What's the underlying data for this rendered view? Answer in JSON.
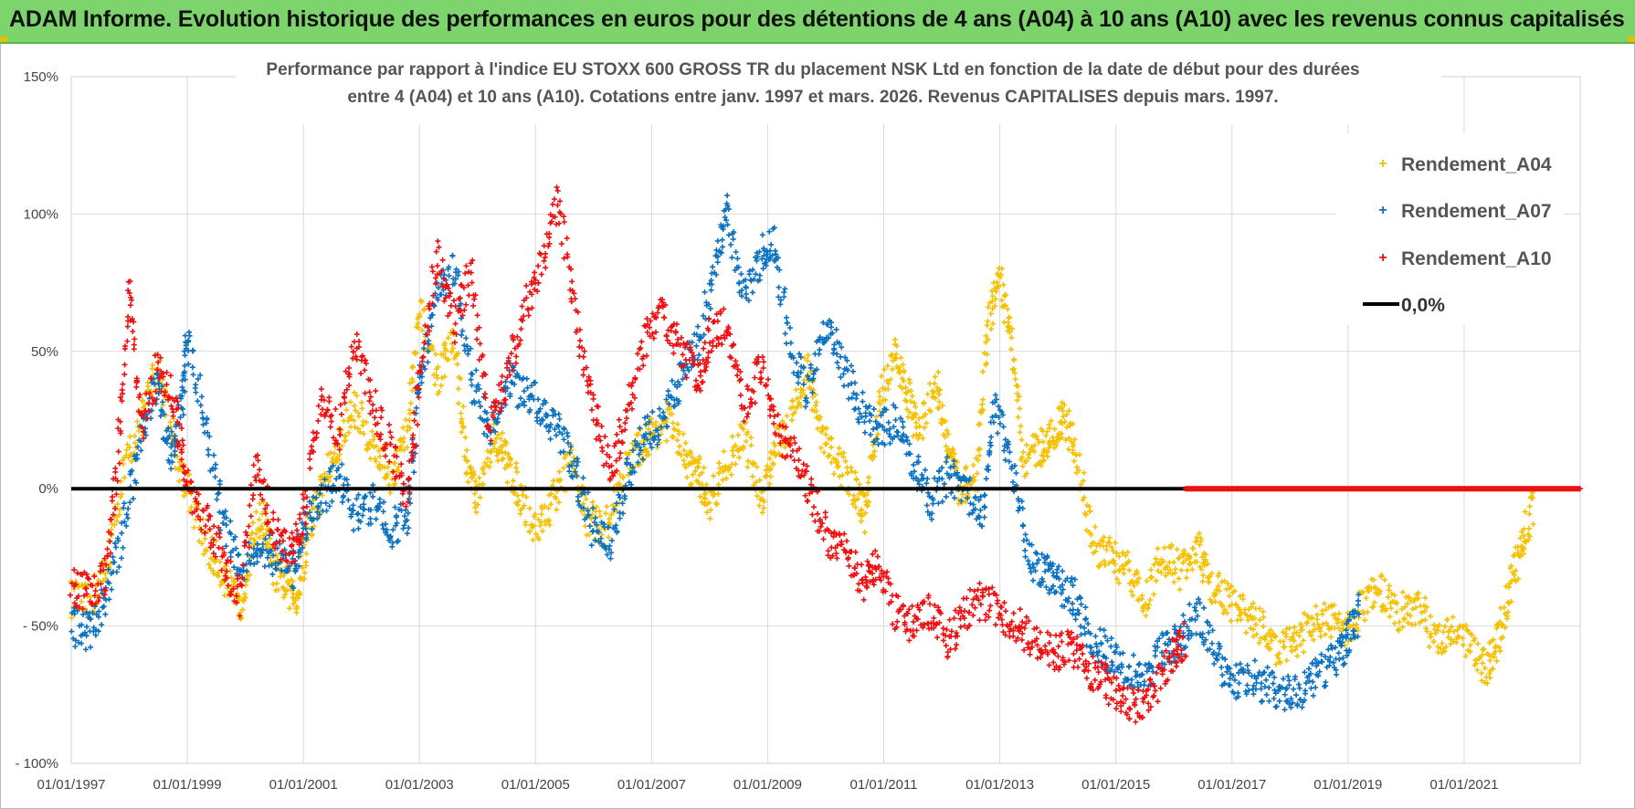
{
  "header": {
    "title": "ADAM Informe. Evolution historique des performances en euros pour des détentions de 4 ans (A04) à 10 ans (A10) avec les revenus connus capitalisés"
  },
  "colors": {
    "A04": "#f5c000",
    "A07": "#0a70c0",
    "A10": "#ee1010",
    "zero": "#000000",
    "banner": "#7dd46d",
    "grid": "#d9d9d9"
  },
  "chart_data": {
    "type": "scatter",
    "title_lines": [
      "Performance par rapport à l'indice EU STOXX 600 GROSS TR  du placement NSK Ltd en fonction de la date de début pour des durées",
      "entre 4 (A04) et 10 ans (A10).  Cotations entre janv. 1997 et mars. 2026.  Revenus CAPITALISES depuis mars. 1997."
    ],
    "xlabel": "",
    "ylabel": "",
    "x_range": [
      "1997-01-01",
      "2023-01-01"
    ],
    "ylim": [
      -100,
      150
    ],
    "y_ticks": [
      {
        "value": 150,
        "label": "150%"
      },
      {
        "value": 100,
        "label": "100%"
      },
      {
        "value": 50,
        "label": "50%"
      },
      {
        "value": 0,
        "label": "0%"
      },
      {
        "value": -50,
        "label": "- 50%"
      },
      {
        "value": -100,
        "label": "- 100%"
      }
    ],
    "x_ticks": [
      {
        "value": "1997-01-01",
        "label": "01/01/1997"
      },
      {
        "value": "1999-01-01",
        "label": "01/01/1999"
      },
      {
        "value": "2001-01-01",
        "label": "01/01/2001"
      },
      {
        "value": "2003-01-01",
        "label": "01/01/2003"
      },
      {
        "value": "2005-01-01",
        "label": "01/01/2005"
      },
      {
        "value": "2007-01-01",
        "label": "01/01/2007"
      },
      {
        "value": "2009-01-01",
        "label": "01/01/2009"
      },
      {
        "value": "2011-01-01",
        "label": "01/01/2011"
      },
      {
        "value": "2013-01-01",
        "label": "01/01/2013"
      },
      {
        "value": "2015-01-01",
        "label": "01/01/2015"
      },
      {
        "value": "2017-01-01",
        "label": "01/01/2017"
      },
      {
        "value": "2019-01-01",
        "label": "01/01/2019"
      },
      {
        "value": "2021-01-01",
        "label": "01/01/2021"
      }
    ],
    "grid": true,
    "legend_position": "top-right",
    "reference_line": {
      "name": "0,0%",
      "y": 0,
      "x_from": "1997-01-01",
      "x_to": "2023-01-01"
    },
    "series": [
      {
        "key": "A04",
        "name": "Rendement_A04",
        "points": [
          [
            1997.0,
            -40
          ],
          [
            1997.3,
            -42
          ],
          [
            1997.6,
            -30
          ],
          [
            1997.9,
            5
          ],
          [
            1998.2,
            25
          ],
          [
            1998.5,
            45
          ],
          [
            1998.8,
            15
          ],
          [
            1999.0,
            0
          ],
          [
            1999.3,
            -20
          ],
          [
            1999.6,
            -30
          ],
          [
            1999.9,
            -45
          ],
          [
            2000.1,
            -20
          ],
          [
            2000.3,
            -10
          ],
          [
            2000.5,
            -30
          ],
          [
            2000.7,
            -35
          ],
          [
            2000.9,
            -40
          ],
          [
            2001.1,
            -15
          ],
          [
            2001.3,
            0
          ],
          [
            2001.6,
            15
          ],
          [
            2001.9,
            30
          ],
          [
            2002.2,
            15
          ],
          [
            2002.5,
            5
          ],
          [
            2002.8,
            20
          ],
          [
            2003.0,
            65
          ],
          [
            2003.3,
            40
          ],
          [
            2003.6,
            55
          ],
          [
            2003.8,
            10
          ],
          [
            2004.0,
            -5
          ],
          [
            2004.3,
            20
          ],
          [
            2004.5,
            10
          ],
          [
            2004.7,
            0
          ],
          [
            2005.0,
            -15
          ],
          [
            2005.3,
            -5
          ],
          [
            2005.6,
            10
          ],
          [
            2005.9,
            -10
          ],
          [
            2006.2,
            -15
          ],
          [
            2006.5,
            5
          ],
          [
            2006.8,
            15
          ],
          [
            2007.0,
            20
          ],
          [
            2007.3,
            25
          ],
          [
            2007.6,
            10
          ],
          [
            2007.8,
            5
          ],
          [
            2008.0,
            -5
          ],
          [
            2008.3,
            10
          ],
          [
            2008.6,
            20
          ],
          [
            2008.9,
            -5
          ],
          [
            2009.1,
            15
          ],
          [
            2009.4,
            25
          ],
          [
            2009.7,
            45
          ],
          [
            2009.9,
            20
          ],
          [
            2010.2,
            10
          ],
          [
            2010.5,
            0
          ],
          [
            2010.7,
            -10
          ],
          [
            2010.9,
            30
          ],
          [
            2011.2,
            50
          ],
          [
            2011.4,
            35
          ],
          [
            2011.6,
            20
          ],
          [
            2011.9,
            40
          ],
          [
            2012.1,
            15
          ],
          [
            2012.3,
            0
          ],
          [
            2012.6,
            5
          ],
          [
            2012.8,
            60
          ],
          [
            2013.0,
            75
          ],
          [
            2013.2,
            55
          ],
          [
            2013.4,
            10
          ],
          [
            2013.7,
            15
          ],
          [
            2013.9,
            20
          ],
          [
            2014.1,
            25
          ],
          [
            2014.3,
            15
          ],
          [
            2014.6,
            -20
          ],
          [
            2014.9,
            -25
          ],
          [
            2015.2,
            -30
          ],
          [
            2015.5,
            -40
          ],
          [
            2015.8,
            -25
          ],
          [
            2016.1,
            -30
          ],
          [
            2016.4,
            -20
          ],
          [
            2016.6,
            -35
          ],
          [
            2016.9,
            -40
          ],
          [
            2017.2,
            -45
          ],
          [
            2017.5,
            -50
          ],
          [
            2017.8,
            -60
          ],
          [
            2018.1,
            -55
          ],
          [
            2018.4,
            -50
          ],
          [
            2018.7,
            -48
          ],
          [
            2019.0,
            -52
          ],
          [
            2019.3,
            -40
          ],
          [
            2019.6,
            -38
          ],
          [
            2019.9,
            -45
          ],
          [
            2020.2,
            -42
          ],
          [
            2020.5,
            -55
          ],
          [
            2020.8,
            -50
          ],
          [
            2021.1,
            -58
          ],
          [
            2021.4,
            -65
          ],
          [
            2021.6,
            -55
          ],
          [
            2021.8,
            -35
          ],
          [
            2022.0,
            -20
          ],
          [
            2022.2,
            -5
          ]
        ]
      },
      {
        "key": "A07",
        "name": "Rendement_A07",
        "points": [
          [
            1997.0,
            -50
          ],
          [
            1997.3,
            -52
          ],
          [
            1997.6,
            -40
          ],
          [
            1997.9,
            -15
          ],
          [
            1998.2,
            20
          ],
          [
            1998.5,
            40
          ],
          [
            1998.7,
            10
          ],
          [
            1998.9,
            30
          ],
          [
            1999.0,
            55
          ],
          [
            1999.3,
            25
          ],
          [
            1999.6,
            -10
          ],
          [
            1999.9,
            -30
          ],
          [
            2000.2,
            -20
          ],
          [
            2000.5,
            -25
          ],
          [
            2000.8,
            -30
          ],
          [
            2001.0,
            -15
          ],
          [
            2001.3,
            -5
          ],
          [
            2001.6,
            5
          ],
          [
            2001.9,
            -10
          ],
          [
            2002.2,
            -5
          ],
          [
            2002.5,
            -15
          ],
          [
            2002.8,
            -10
          ],
          [
            2003.0,
            40
          ],
          [
            2003.3,
            70
          ],
          [
            2003.6,
            80
          ],
          [
            2003.9,
            40
          ],
          [
            2004.2,
            20
          ],
          [
            2004.5,
            40
          ],
          [
            2004.8,
            35
          ],
          [
            2005.1,
            30
          ],
          [
            2005.4,
            20
          ],
          [
            2005.7,
            5
          ],
          [
            2006.0,
            -15
          ],
          [
            2006.3,
            -20
          ],
          [
            2006.6,
            5
          ],
          [
            2006.9,
            20
          ],
          [
            2007.2,
            25
          ],
          [
            2007.5,
            40
          ],
          [
            2007.8,
            55
          ],
          [
            2008.1,
            80
          ],
          [
            2008.3,
            100
          ],
          [
            2008.6,
            70
          ],
          [
            2008.9,
            85
          ],
          [
            2009.1,
            90
          ],
          [
            2009.4,
            50
          ],
          [
            2009.7,
            35
          ],
          [
            2010.0,
            60
          ],
          [
            2010.3,
            45
          ],
          [
            2010.6,
            30
          ],
          [
            2010.9,
            20
          ],
          [
            2011.2,
            25
          ],
          [
            2011.5,
            10
          ],
          [
            2011.8,
            -5
          ],
          [
            2012.1,
            5
          ],
          [
            2012.4,
            0
          ],
          [
            2012.7,
            -10
          ],
          [
            2012.9,
            30
          ],
          [
            2013.2,
            10
          ],
          [
            2013.5,
            -25
          ],
          [
            2013.8,
            -30
          ],
          [
            2014.0,
            -35
          ],
          [
            2014.3,
            -40
          ],
          [
            2014.6,
            -55
          ],
          [
            2014.9,
            -60
          ],
          [
            2015.2,
            -65
          ],
          [
            2015.5,
            -70
          ],
          [
            2015.8,
            -58
          ],
          [
            2016.1,
            -55
          ],
          [
            2016.4,
            -45
          ],
          [
            2016.7,
            -60
          ],
          [
            2017.0,
            -70
          ],
          [
            2017.3,
            -68
          ],
          [
            2017.6,
            -72
          ],
          [
            2017.9,
            -75
          ],
          [
            2018.2,
            -73
          ],
          [
            2018.5,
            -68
          ],
          [
            2018.8,
            -62
          ],
          [
            2019.0,
            -55
          ],
          [
            2019.2,
            -45
          ]
        ]
      },
      {
        "key": "A10",
        "name": "Rendement_A10",
        "points": [
          [
            1997.0,
            -35
          ],
          [
            1997.3,
            -38
          ],
          [
            1997.6,
            -32
          ],
          [
            1997.8,
            10
          ],
          [
            1998.0,
            75
          ],
          [
            1998.2,
            20
          ],
          [
            1998.5,
            45
          ],
          [
            1998.8,
            30
          ],
          [
            1999.0,
            0
          ],
          [
            1999.3,
            -10
          ],
          [
            1999.6,
            -25
          ],
          [
            1999.9,
            -40
          ],
          [
            2000.2,
            10
          ],
          [
            2000.5,
            -15
          ],
          [
            2000.8,
            -25
          ],
          [
            2001.0,
            -10
          ],
          [
            2001.3,
            35
          ],
          [
            2001.6,
            20
          ],
          [
            2001.9,
            55
          ],
          [
            2002.2,
            30
          ],
          [
            2002.5,
            15
          ],
          [
            2002.8,
            -5
          ],
          [
            2003.0,
            40
          ],
          [
            2003.3,
            85
          ],
          [
            2003.6,
            60
          ],
          [
            2003.9,
            80
          ],
          [
            2004.2,
            20
          ],
          [
            2004.5,
            40
          ],
          [
            2004.8,
            65
          ],
          [
            2005.1,
            80
          ],
          [
            2005.4,
            105
          ],
          [
            2005.7,
            60
          ],
          [
            2006.0,
            30
          ],
          [
            2006.3,
            5
          ],
          [
            2006.6,
            30
          ],
          [
            2006.9,
            55
          ],
          [
            2007.2,
            65
          ],
          [
            2007.5,
            50
          ],
          [
            2007.8,
            40
          ],
          [
            2008.0,
            55
          ],
          [
            2008.3,
            60
          ],
          [
            2008.6,
            30
          ],
          [
            2008.9,
            45
          ],
          [
            2009.2,
            20
          ],
          [
            2009.5,
            10
          ],
          [
            2009.8,
            -5
          ],
          [
            2010.1,
            -20
          ],
          [
            2010.4,
            -25
          ],
          [
            2010.7,
            -35
          ],
          [
            2010.9,
            -25
          ],
          [
            2011.2,
            -45
          ],
          [
            2011.5,
            -50
          ],
          [
            2011.8,
            -45
          ],
          [
            2012.1,
            -55
          ],
          [
            2012.4,
            -45
          ],
          [
            2012.7,
            -40
          ],
          [
            2013.0,
            -45
          ],
          [
            2013.3,
            -50
          ],
          [
            2013.6,
            -55
          ],
          [
            2013.9,
            -60
          ],
          [
            2014.2,
            -58
          ],
          [
            2014.5,
            -65
          ],
          [
            2014.8,
            -70
          ],
          [
            2015.1,
            -75
          ],
          [
            2015.4,
            -80
          ],
          [
            2015.7,
            -72
          ],
          [
            2016.0,
            -60
          ],
          [
            2016.2,
            -55
          ]
        ]
      }
    ],
    "zero_tail": [
      {
        "key": "A10",
        "from": 2016.2,
        "to": 2023.0,
        "value": 0
      }
    ]
  }
}
